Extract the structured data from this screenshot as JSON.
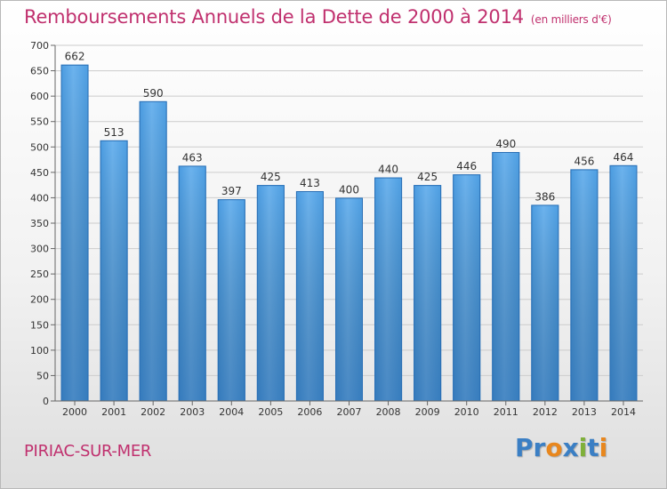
{
  "title": "Remboursements Annuels de la Dette de 2000 à 2014",
  "subtitle": "(en milliers d'€)",
  "town": "PIRIAC-SUR-MER",
  "logo": {
    "text": "Proxiti",
    "letters": [
      {
        "ch": "P",
        "color": "#3b7fc4"
      },
      {
        "ch": "r",
        "color": "#3b7fc4"
      },
      {
        "ch": "o",
        "color": "#e8871e"
      },
      {
        "ch": "x",
        "color": "#3b7fc4"
      },
      {
        "ch": "i",
        "color": "#7fb03a"
      },
      {
        "ch": "t",
        "color": "#3b7fc4"
      },
      {
        "ch": "i",
        "color": "#e8871e"
      }
    ]
  },
  "colors": {
    "title": "#c0306e",
    "bar_light": "#6cb3ee",
    "bar_dark": "#2a7fcc",
    "grid": "#cccccc"
  },
  "chart_data": {
    "type": "bar",
    "categories": [
      "2000",
      "2001",
      "2002",
      "2003",
      "2004",
      "2005",
      "2006",
      "2007",
      "2008",
      "2009",
      "2010",
      "2011",
      "2012",
      "2013",
      "2014"
    ],
    "values": [
      662,
      513,
      590,
      463,
      397,
      425,
      413,
      400,
      440,
      425,
      446,
      490,
      386,
      456,
      464
    ],
    "ylim": [
      0,
      700
    ],
    "yticks": [
      0,
      50,
      100,
      150,
      200,
      250,
      300,
      350,
      400,
      450,
      500,
      550,
      600,
      650,
      700
    ],
    "grid": true,
    "data_labels": true
  }
}
